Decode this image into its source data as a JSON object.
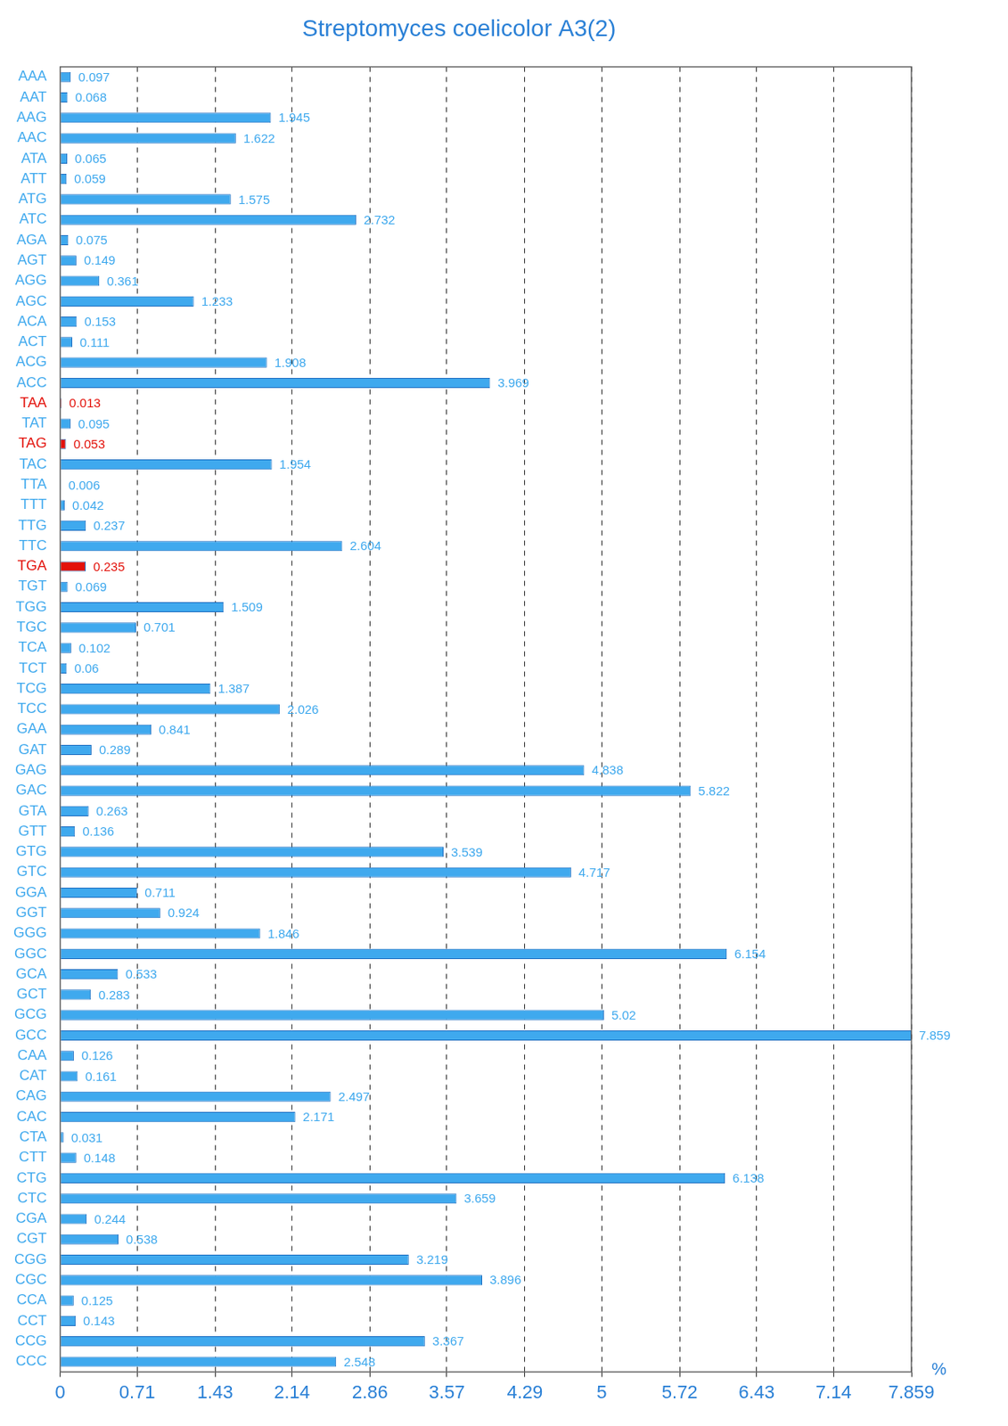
{
  "chart_data": {
    "type": "bar",
    "orientation": "horizontal",
    "title": "Streptomyces coelicolor A3(2)",
    "xlabel": "%",
    "categories": [
      "AAA",
      "AAT",
      "AAG",
      "AAC",
      "ATA",
      "ATT",
      "ATG",
      "ATC",
      "AGA",
      "AGT",
      "AGG",
      "AGC",
      "ACA",
      "ACT",
      "ACG",
      "ACC",
      "TAA",
      "TAT",
      "TAG",
      "TAC",
      "TTA",
      "TTT",
      "TTG",
      "TTC",
      "TGA",
      "TGT",
      "TGG",
      "TGC",
      "TCA",
      "TCT",
      "TCG",
      "TCC",
      "GAA",
      "GAT",
      "GAG",
      "GAC",
      "GTA",
      "GTT",
      "GTG",
      "GTC",
      "GGA",
      "GGT",
      "GGG",
      "GGC",
      "GCA",
      "GCT",
      "GCG",
      "GCC",
      "CAA",
      "CAT",
      "CAG",
      "CAC",
      "CTA",
      "CTT",
      "CTG",
      "CTC",
      "CGA",
      "CGT",
      "CGG",
      "CGC",
      "CCA",
      "CCT",
      "CCG",
      "CCC"
    ],
    "values": [
      0.097,
      0.068,
      1.945,
      1.622,
      0.065,
      0.059,
      1.575,
      2.732,
      0.075,
      0.149,
      0.361,
      1.233,
      0.153,
      0.111,
      1.908,
      3.969,
      0.013,
      0.095,
      0.053,
      1.954,
      0.006,
      0.042,
      0.237,
      2.604,
      0.235,
      0.069,
      1.509,
      0.701,
      0.102,
      0.06,
      1.387,
      2.026,
      0.841,
      0.289,
      4.838,
      5.822,
      0.263,
      0.136,
      3.539,
      4.717,
      0.711,
      0.924,
      1.846,
      6.154,
      0.533,
      0.283,
      5.02,
      7.859,
      0.126,
      0.161,
      2.497,
      2.171,
      0.031,
      0.148,
      6.138,
      3.659,
      0.244,
      0.538,
      3.219,
      3.896,
      0.125,
      0.143,
      3.367,
      2.548
    ],
    "colors": [
      "#3fa9ee",
      "#3fa9ee",
      "#3fa9ee",
      "#3fa9ee",
      "#3fa9ee",
      "#3fa9ee",
      "#3fa9ee",
      "#3fa9ee",
      "#3fa9ee",
      "#3fa9ee",
      "#3fa9ee",
      "#3fa9ee",
      "#3fa9ee",
      "#3fa9ee",
      "#3fa9ee",
      "#3fa9ee",
      "#e3120b",
      "#3fa9ee",
      "#e3120b",
      "#3fa9ee",
      "#3fa9ee",
      "#3fa9ee",
      "#3fa9ee",
      "#3fa9ee",
      "#e3120b",
      "#3fa9ee",
      "#3fa9ee",
      "#3fa9ee",
      "#3fa9ee",
      "#3fa9ee",
      "#3fa9ee",
      "#3fa9ee",
      "#3fa9ee",
      "#3fa9ee",
      "#3fa9ee",
      "#3fa9ee",
      "#3fa9ee",
      "#3fa9ee",
      "#3fa9ee",
      "#3fa9ee",
      "#3fa9ee",
      "#3fa9ee",
      "#3fa9ee",
      "#3fa9ee",
      "#3fa9ee",
      "#3fa9ee",
      "#3fa9ee",
      "#3fa9ee",
      "#3fa9ee",
      "#3fa9ee",
      "#3fa9ee",
      "#3fa9ee",
      "#3fa9ee",
      "#3fa9ee",
      "#3fa9ee",
      "#3fa9ee",
      "#3fa9ee",
      "#3fa9ee",
      "#3fa9ee",
      "#3fa9ee",
      "#3fa9ee",
      "#3fa9ee",
      "#3fa9ee",
      "#3fa9ee"
    ],
    "xlim": [
      0,
      7.859
    ],
    "xticks": [
      0,
      0.71,
      1.43,
      2.14,
      2.86,
      3.57,
      4.29,
      5,
      5.72,
      6.43,
      7.14,
      7.859
    ],
    "grid": true,
    "data_labels": true
  }
}
